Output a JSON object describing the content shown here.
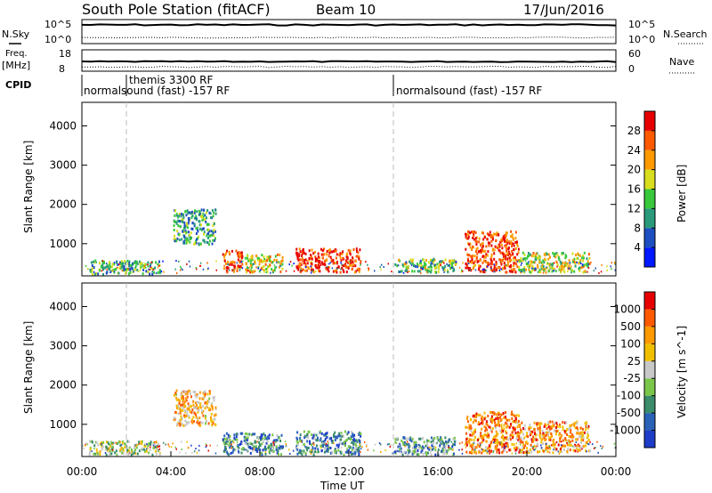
{
  "header": {
    "title": "South Pole Station (fitACF)",
    "beam": "Beam 10",
    "date": "17/Jun/2016"
  },
  "chart_data": [
    {
      "type": "line",
      "panel": "noise",
      "left_label": "N.Sky",
      "right_label": "N.Search",
      "left_ticks": [
        "10^5",
        "10^0"
      ],
      "right_ticks": [
        "10^5",
        "10^0"
      ],
      "series": [
        {
          "name": "N.Sky",
          "style": "solid",
          "level": 0.78
        },
        {
          "name": "N.Search",
          "style": "dotted",
          "level": 0.25
        }
      ]
    },
    {
      "type": "line",
      "panel": "frequency",
      "left_label_line1": "Freq.",
      "left_label_line2": "[MHz]",
      "right_label": "Nave",
      "left_ticks": [
        "18",
        "8"
      ],
      "right_ticks": [
        "60",
        "0"
      ],
      "series": [
        {
          "name": "Freq",
          "style": "solid",
          "level": 0.45
        },
        {
          "name": "Nave",
          "style": "dotted",
          "level": 0.2
        }
      ]
    },
    {
      "type": "table",
      "panel": "cpid",
      "label": "CPID",
      "segments": [
        {
          "text": "normalsound (fast) -157 RF",
          "start_hour": 0
        },
        {
          "text": "themis 3300 RF",
          "start_hour": 2
        },
        {
          "text": "normalsound (fast) -157 RF",
          "start_hour": 14
        }
      ]
    },
    {
      "type": "heatmap",
      "panel": "power",
      "ylabel": "Slant Range [km]",
      "y_ticks": [
        1000,
        2000,
        3000,
        4000
      ],
      "ylim": [
        180,
        4600
      ],
      "xlim": [
        0,
        24
      ],
      "colorbar_label": "Power [dB]",
      "colorbar_ticks": [
        "4",
        "8",
        "12",
        "16",
        "20",
        "24",
        "28"
      ],
      "colorbar_colors": [
        "#0018ff",
        "#1d4fc0",
        "#2a9a7a",
        "#39c83c",
        "#d8dd1d",
        "#ff9a00",
        "#ff5a00",
        "#e60000"
      ],
      "patches": [
        {
          "x0": 4.1,
          "x1": 6.0,
          "y0": 1000,
          "y1": 1900,
          "level": 0.35
        },
        {
          "x0": 6.3,
          "x1": 7.2,
          "y0": 300,
          "y1": 850,
          "level": 0.85
        },
        {
          "x0": 7.3,
          "x1": 9.0,
          "y0": 300,
          "y1": 750,
          "level": 0.6
        },
        {
          "x0": 9.6,
          "x1": 12.5,
          "y0": 300,
          "y1": 900,
          "level": 0.9
        },
        {
          "x0": 14.0,
          "x1": 16.8,
          "y0": 300,
          "y1": 650,
          "level": 0.45
        },
        {
          "x0": 17.2,
          "x1": 19.6,
          "y0": 300,
          "y1": 1350,
          "level": 0.85
        },
        {
          "x0": 19.6,
          "x1": 22.8,
          "y0": 300,
          "y1": 800,
          "level": 0.55
        },
        {
          "x0": 0.3,
          "x1": 3.5,
          "y0": 250,
          "y1": 600,
          "level": 0.4
        }
      ]
    },
    {
      "type": "heatmap",
      "panel": "velocity",
      "ylabel": "Slant Range [km]",
      "y_ticks": [
        1000,
        2000,
        3000,
        4000
      ],
      "ylim": [
        180,
        4600
      ],
      "xlim": [
        0,
        24
      ],
      "xlabel": "Time UT",
      "x_ticks": [
        "00:00",
        "04:00",
        "08:00",
        "12:00",
        "16:00",
        "20:00",
        "00:00"
      ],
      "colorbar_label": "Velocity [m s^-1]",
      "colorbar_ticks": [
        "1000",
        "500",
        "100",
        "25",
        "-25",
        "-100",
        "-500",
        "-1000"
      ],
      "colorbar_colors": [
        "#1d3cc8",
        "#2a62b8",
        "#3a8c6a",
        "#7ac64a",
        "#c8c8c8",
        "#f0c000",
        "#ff9a00",
        "#ff5a00",
        "#e60000"
      ],
      "patches": [
        {
          "x0": 4.1,
          "x1": 6.0,
          "y0": 1000,
          "y1": 1900,
          "level": 0.65
        },
        {
          "x0": 6.3,
          "x1": 9.0,
          "y0": 250,
          "y1": 800,
          "level": 0.25
        },
        {
          "x0": 9.6,
          "x1": 12.5,
          "y0": 250,
          "y1": 850,
          "level": 0.25
        },
        {
          "x0": 14.0,
          "x1": 16.8,
          "y0": 250,
          "y1": 700,
          "level": 0.3
        },
        {
          "x0": 17.2,
          "x1": 19.6,
          "y0": 300,
          "y1": 1350,
          "level": 0.75
        },
        {
          "x0": 19.6,
          "x1": 22.8,
          "y0": 300,
          "y1": 1100,
          "level": 0.7
        },
        {
          "x0": 0.3,
          "x1": 3.5,
          "y0": 250,
          "y1": 600,
          "level": 0.45
        }
      ]
    }
  ]
}
